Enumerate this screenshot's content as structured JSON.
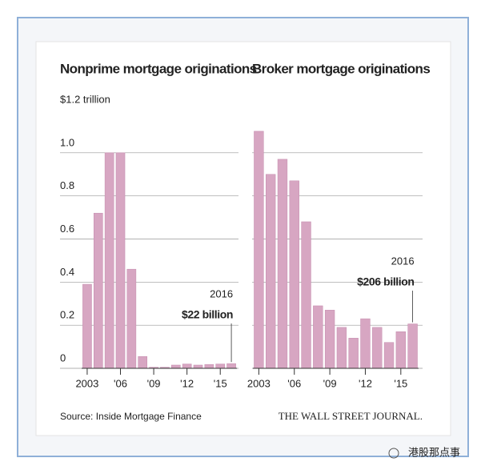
{
  "chart_data": [
    {
      "type": "bar",
      "title": "Nonprime mortgage originations",
      "categories": [
        "2003",
        null,
        null,
        "'06",
        null,
        null,
        "'09",
        null,
        null,
        "'12",
        null,
        null,
        "'15",
        null
      ],
      "values": [
        0.39,
        0.72,
        1.0,
        1.0,
        0.46,
        0.055,
        0.005,
        0.005,
        0.015,
        0.02,
        0.015,
        0.018,
        0.02,
        0.022
      ],
      "color": "#d7a6c2",
      "ylim": [
        0,
        1.2
      ],
      "yticks": [
        {
          "value": 1.2,
          "label": "$1.2 trillion"
        },
        {
          "value": 1.0,
          "label": "1.0"
        },
        0.8,
        0.6,
        0.4,
        0.2,
        0
      ],
      "grid": true,
      "annotations": [
        "2016",
        "$22 billion"
      ]
    },
    {
      "type": "bar",
      "title": "Broker mortgage originations",
      "categories": [
        "2003",
        null,
        null,
        "'06",
        null,
        null,
        "'09",
        null,
        null,
        "'12",
        null,
        null,
        "'15",
        null
      ],
      "values": [
        1.1,
        0.9,
        0.97,
        0.87,
        0.68,
        0.29,
        0.27,
        0.19,
        0.14,
        0.23,
        0.19,
        0.12,
        0.17,
        0.206
      ],
      "color": "#d7a6c2",
      "ylim": [
        0,
        1.2
      ],
      "grid": true,
      "annotations": [
        "2016",
        "$206 billion"
      ]
    }
  ],
  "source": "Source: Inside Mortgage Finance",
  "publisher": "THE WALL STREET JOURNAL.",
  "footer": "港股那点事"
}
